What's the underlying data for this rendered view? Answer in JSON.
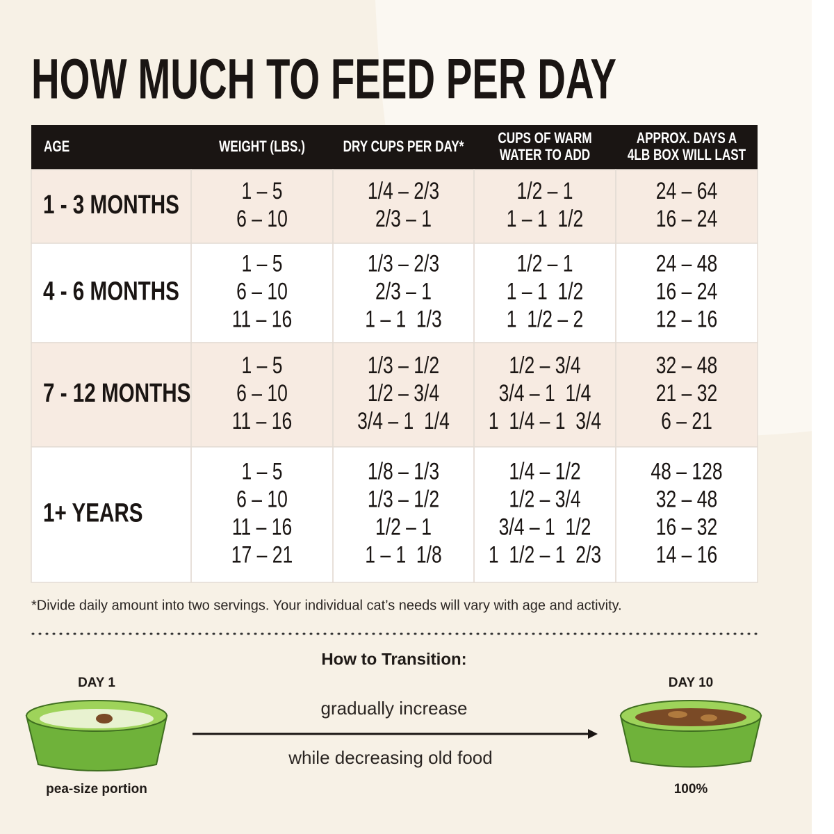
{
  "title": "HOW MUCH TO FEED PER DAY",
  "table": {
    "header": [
      [
        "AGE"
      ],
      [
        "WEIGHT (LBS.)"
      ],
      [
        "DRY CUPS PER DAY*"
      ],
      [
        "CUPS OF WARM",
        "WATER TO ADD"
      ],
      [
        "APPROX. DAYS A",
        "4LB BOX WILL LAST"
      ]
    ],
    "rows": [
      [
        [
          "1 - 3 MONTHS"
        ],
        [
          "1 – 5",
          "6 – 10"
        ],
        [
          "1/4 – 2/3",
          "2/3 – 1"
        ],
        [
          "1/2 – 1",
          "1 – 1  1/2"
        ],
        [
          "24 – 64",
          "16 – 24"
        ]
      ],
      [
        [
          "4 - 6 MONTHS"
        ],
        [
          "1 – 5",
          "6 – 10",
          "11 – 16"
        ],
        [
          "1/3 – 2/3",
          "2/3 – 1",
          "1 – 1  1/3"
        ],
        [
          "1/2 – 1",
          "1 – 1  1/2",
          "1  1/2 – 2"
        ],
        [
          "24 – 48",
          "16 – 24",
          "12 – 16"
        ]
      ],
      [
        [
          "7 - 12 MONTHS"
        ],
        [
          "1 – 5",
          "6 – 10",
          "11 – 16"
        ],
        [
          "1/3 – 1/2",
          "1/2 – 3/4",
          "3/4 – 1  1/4"
        ],
        [
          "1/2 – 3/4",
          "3/4 – 1  1/4",
          "1  1/4 – 1  3/4"
        ],
        [
          "32 – 48",
          "21 – 32",
          "6 – 21"
        ]
      ],
      [
        [
          "1+ YEARS"
        ],
        [
          "1 – 5",
          "6 – 10",
          "11 – 16",
          "17 – 21"
        ],
        [
          "1/8 – 1/3",
          "1/3 – 1/2",
          "1/2 – 1",
          "1 – 1  1/8"
        ],
        [
          "1/4 – 1/2",
          "1/2 – 3/4",
          "3/4 – 1  1/2",
          "1  1/2 – 1  2/3"
        ],
        [
          "48 – 128",
          "32 – 48",
          "16 – 32",
          "14 – 16"
        ]
      ]
    ]
  },
  "footnote": "*Divide daily amount into two servings. Your individual cat’s needs will vary with age and activity.",
  "transition": {
    "title": "How to Transition:",
    "start_label": "DAY 1",
    "start_caption": "pea-size portion",
    "end_label": "DAY 10",
    "end_caption": "100%",
    "above_arrow": "gradually increase",
    "below_arrow": "while decreasing old food"
  }
}
